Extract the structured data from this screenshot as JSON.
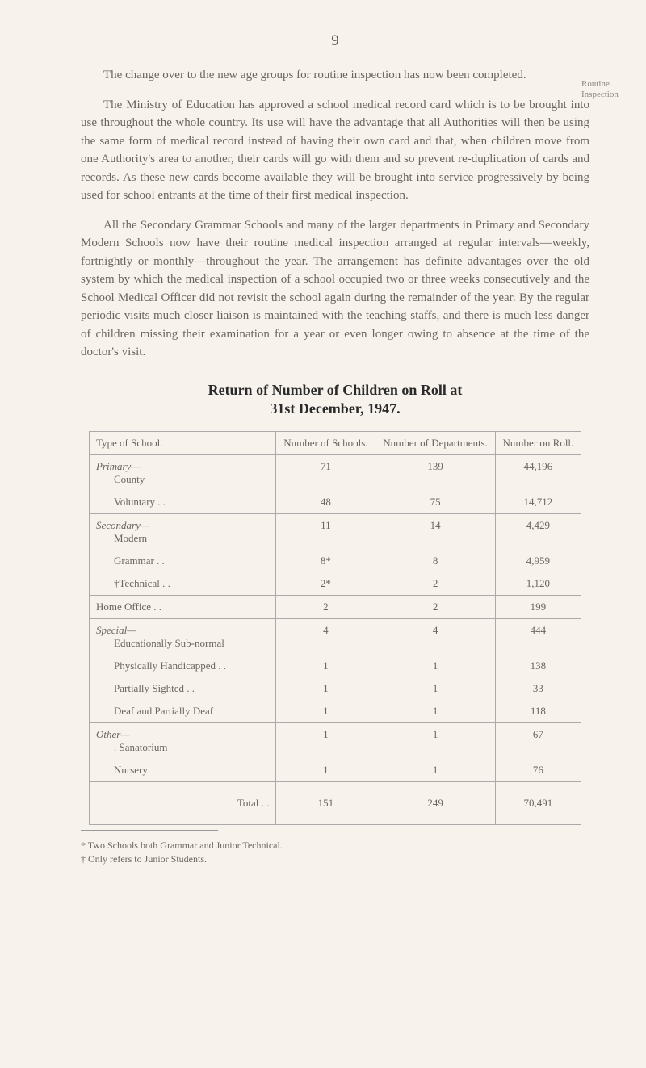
{
  "page_number": "9",
  "margin_note": "Routine Inspection",
  "paragraphs": {
    "p1": "The change over to the new age groups for routine inspection has now been completed.",
    "p2": "The Ministry of Education has approved a school medical record card which is to be brought into use throughout the whole country. Its use will have the advantage that all Authorities will then be using the same form of medical record instead of having their own card and that, when children move from one Authority's area to another, their cards will go with them and so prevent re-duplication of cards and records. As these new cards become available they will be brought into service progressively by being used for school entrants at the time of their first medical inspection.",
    "p3": "All the Secondary Grammar Schools and many of the larger departments in Primary and Secondary Modern Schools now have their routine medical inspection arranged at regular intervals—weekly, fortnightly or monthly—throughout the year. The arrangement has definite advantages over the old system by which the medical inspection of a school occupied two or three weeks consecutively and the School Medical Officer did not revisit the school again during the remainder of the year. By the regular periodic visits much closer liaison is maintained with the teaching staffs, and there is much less danger of children missing their examination for a year or even longer owing to absence at the time of the doctor's visit."
  },
  "heading_line1": "Return of Number of Children on Roll at",
  "heading_line2": "31st December, 1947.",
  "table": {
    "headers": {
      "h1": "Type of School.",
      "h2": "Number of Schools.",
      "h3": "Number of Departments.",
      "h4": "Number on Roll."
    },
    "groups": [
      {
        "label": "Primary—",
        "rows": [
          {
            "type": "County",
            "schools": "71",
            "depts": "139",
            "roll": "44,196"
          },
          {
            "type": "Voluntary . .",
            "schools": "48",
            "depts": "75",
            "roll": "14,712"
          }
        ]
      },
      {
        "label": "Secondary—",
        "rows": [
          {
            "type": "Modern",
            "schools": "11",
            "depts": "14",
            "roll": "4,429"
          },
          {
            "type": "Grammar . .",
            "schools": "8*",
            "depts": "8",
            "roll": "4,959"
          },
          {
            "type": "†Technical . .",
            "schools": "2*",
            "depts": "2",
            "roll": "1,120"
          }
        ]
      },
      {
        "label": null,
        "rows": [
          {
            "type": "Home Office . .",
            "schools": "2",
            "depts": "2",
            "roll": "199"
          }
        ]
      },
      {
        "label": "Special—",
        "rows": [
          {
            "type": "Educationally Sub-normal",
            "schools": "4",
            "depts": "4",
            "roll": "444"
          },
          {
            "type": "Physically Handicapped . .",
            "schools": "1",
            "depts": "1",
            "roll": "138"
          },
          {
            "type": "Partially Sighted . .",
            "schools": "1",
            "depts": "1",
            "roll": "33"
          },
          {
            "type": "Deaf and Partially Deaf",
            "schools": "1",
            "depts": "1",
            "roll": "118"
          }
        ]
      },
      {
        "label": "Other—",
        "rows": [
          {
            "type": ". Sanatorium",
            "schools": "1",
            "depts": "1",
            "roll": "67"
          },
          {
            "type": "Nursery",
            "schools": "1",
            "depts": "1",
            "roll": "76"
          }
        ]
      }
    ],
    "total_row": {
      "label": "Total",
      "schools": "151",
      "depts": "249",
      "roll": "70,491"
    }
  },
  "footnotes": {
    "f1": "* Two Schools both Grammar and Junior Technical.",
    "f2": "† Only refers to Junior Students."
  }
}
